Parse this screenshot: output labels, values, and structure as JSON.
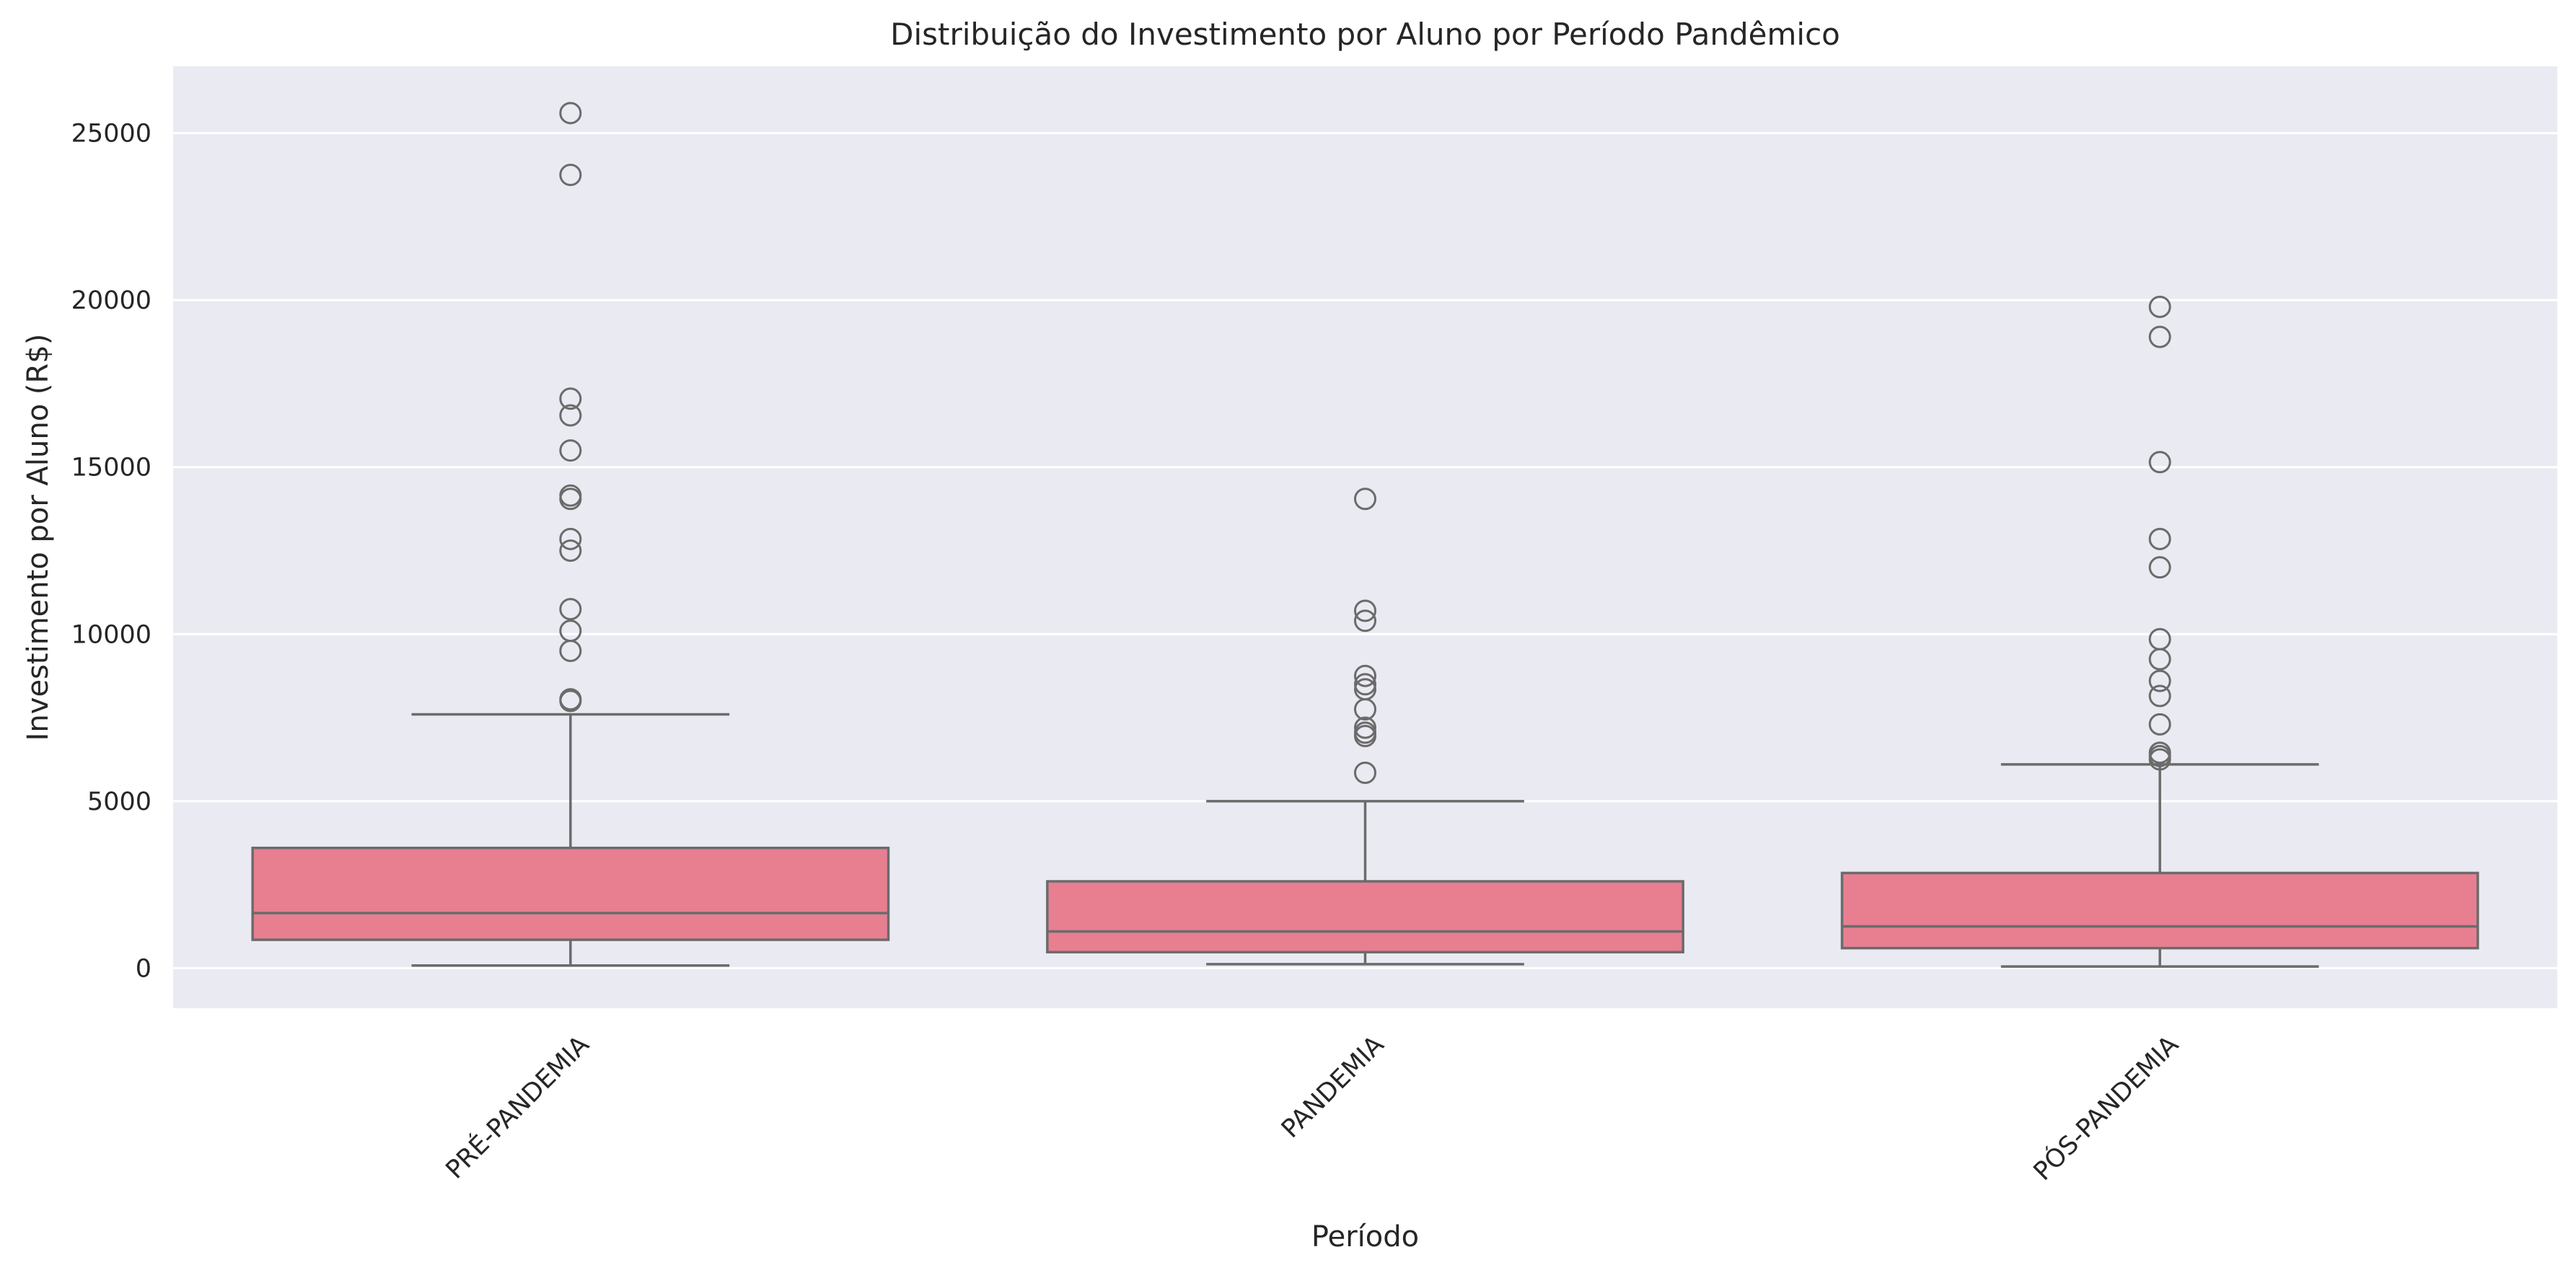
{
  "chart_data": {
    "type": "boxplot",
    "title": "Distribuição do Investimento por Aluno por Período Pandêmico",
    "xlabel": "Período",
    "ylabel": "Investimento por Aluno (R$)",
    "ylim": [
      -1200,
      27000
    ],
    "yticks": [
      0,
      5000,
      10000,
      15000,
      20000,
      25000
    ],
    "y_tick_labels": [
      "0",
      "5000",
      "10000",
      "15000",
      "20000",
      "25000"
    ],
    "categories": [
      "PRÉ-PANDEMIA",
      "PANDEMIA",
      "PÓS-PANDEMIA"
    ],
    "grid": true,
    "legend": "none",
    "boxes": [
      {
        "category": "PRÉ-PANDEMIA",
        "whisker_low": 80,
        "q1": 850,
        "median": 1650,
        "q3": 3600,
        "whisker_high": 7600,
        "outliers": [
          25600,
          23750,
          17050,
          16550,
          15500,
          14150,
          14050,
          12850,
          12500,
          10750,
          10100,
          9500,
          8050,
          8000
        ]
      },
      {
        "category": "PANDEMIA",
        "whisker_low": 120,
        "q1": 480,
        "median": 1100,
        "q3": 2600,
        "whisker_high": 5000,
        "outliers": [
          14050,
          10700,
          10400,
          8750,
          8500,
          8350,
          7750,
          7200,
          7050,
          6950,
          5850
        ]
      },
      {
        "category": "PÓS-PANDEMIA",
        "whisker_low": 50,
        "q1": 600,
        "median": 1250,
        "q3": 2850,
        "whisker_high": 6100,
        "outliers": [
          19800,
          18900,
          15150,
          12850,
          12000,
          9850,
          9250,
          8600,
          8150,
          7300,
          6450,
          6350,
          6250
        ]
      }
    ],
    "colors": {
      "background": "#eaeaf2",
      "grid": "#ffffff",
      "box_fill": "#e77f91",
      "line": "#6b6b6b"
    }
  }
}
